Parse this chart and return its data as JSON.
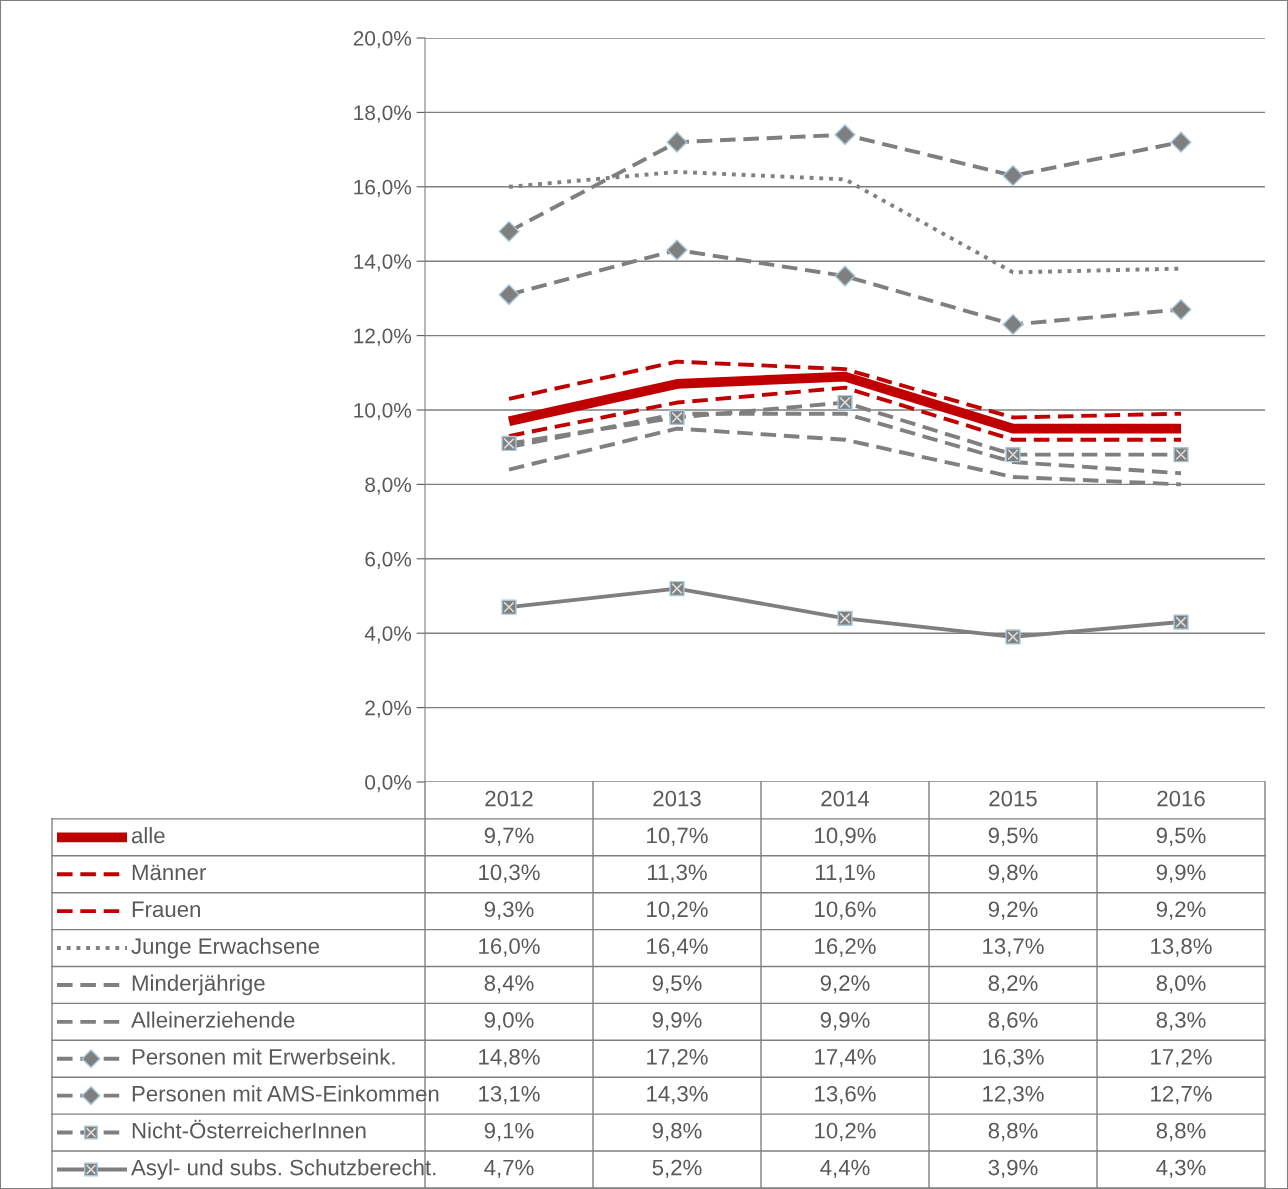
{
  "chart_data": {
    "type": "line",
    "categories": [
      "2012",
      "2013",
      "2014",
      "2015",
      "2016"
    ],
    "ylim": [
      0,
      20
    ],
    "yticks": [
      {
        "value": 0,
        "label": "0,0%"
      },
      {
        "value": 2,
        "label": "2,0%"
      },
      {
        "value": 4,
        "label": "4,0%"
      },
      {
        "value": 6,
        "label": "6,0%"
      },
      {
        "value": 8,
        "label": "8,0%"
      },
      {
        "value": 10,
        "label": "10,0%"
      },
      {
        "value": 12,
        "label": "12,0%"
      },
      {
        "value": 14,
        "label": "14,0%"
      },
      {
        "value": 16,
        "label": "16,0%"
      },
      {
        "value": 18,
        "label": "18,0%"
      },
      {
        "value": 20,
        "label": "20,0%"
      }
    ],
    "grid": "y",
    "legend": "bottom",
    "series": [
      {
        "name": "alle",
        "color": "#c00000",
        "line_style": "solid",
        "marker": "none",
        "values": [
          9.7,
          10.7,
          10.9,
          9.5,
          9.5
        ],
        "value_labels": [
          "9,7%",
          "10,7%",
          "10,9%",
          "9,5%",
          "9,5%"
        ]
      },
      {
        "name": "Männer",
        "color": "#c00000",
        "line_style": "dashed",
        "marker": "none",
        "values": [
          10.3,
          11.3,
          11.1,
          9.8,
          9.9
        ],
        "value_labels": [
          "10,3%",
          "11,3%",
          "11,1%",
          "9,8%",
          "9,9%"
        ]
      },
      {
        "name": "Frauen",
        "color": "#c00000",
        "line_style": "dashed",
        "marker": "none",
        "values": [
          9.3,
          10.2,
          10.6,
          9.2,
          9.2
        ],
        "value_labels": [
          "9,3%",
          "10,2%",
          "10,6%",
          "9,2%",
          "9,2%"
        ]
      },
      {
        "name": "Junge Erwachsene",
        "color": "#808080",
        "line_style": "dotted",
        "marker": "none",
        "values": [
          16.0,
          16.4,
          16.2,
          13.7,
          13.8
        ],
        "value_labels": [
          "16,0%",
          "16,4%",
          "16,2%",
          "13,7%",
          "13,8%"
        ]
      },
      {
        "name": "Minderjährige",
        "color": "#808080",
        "line_style": "dashed",
        "marker": "none",
        "values": [
          8.4,
          9.5,
          9.2,
          8.2,
          8.0
        ],
        "value_labels": [
          "8,4%",
          "9,5%",
          "9,2%",
          "8,2%",
          "8,0%"
        ]
      },
      {
        "name": "Alleinerziehende",
        "color": "#808080",
        "line_style": "dashed",
        "marker": "none",
        "values": [
          9.0,
          9.9,
          9.9,
          8.6,
          8.3
        ],
        "value_labels": [
          "9,0%",
          "9,9%",
          "9,9%",
          "8,6%",
          "8,3%"
        ]
      },
      {
        "name": "Personen mit Erwerbseink.",
        "color": "#7f7f7f",
        "line_style": "dashed",
        "marker": "diamond",
        "values": [
          14.8,
          17.2,
          17.4,
          16.3,
          17.2
        ],
        "value_labels": [
          "14,8%",
          "17,2%",
          "17,4%",
          "16,3%",
          "17,2%"
        ]
      },
      {
        "name": "Personen mit AMS-Einkommen",
        "color": "#7f7f7f",
        "line_style": "dashed",
        "marker": "diamond",
        "values": [
          13.1,
          14.3,
          13.6,
          12.3,
          12.7
        ],
        "value_labels": [
          "13,1%",
          "14,3%",
          "13,6%",
          "12,3%",
          "12,7%"
        ]
      },
      {
        "name": "Nicht-ÖsterreicherInnen",
        "color": "#7f7f7f",
        "line_style": "dashed",
        "marker": "square",
        "values": [
          9.1,
          9.8,
          10.2,
          8.8,
          8.8
        ],
        "value_labels": [
          "9,1%",
          "9,8%",
          "10,2%",
          "8,8%",
          "8,8%"
        ]
      },
      {
        "name": "Asyl- und subs. Schutzberecht.",
        "color": "#7f7f7f",
        "line_style": "solid",
        "marker": "square",
        "values": [
          4.7,
          5.2,
          4.4,
          3.9,
          4.3
        ],
        "value_labels": [
          "4,7%",
          "5,2%",
          "4,4%",
          "3,9%",
          "4,3%"
        ]
      }
    ]
  }
}
